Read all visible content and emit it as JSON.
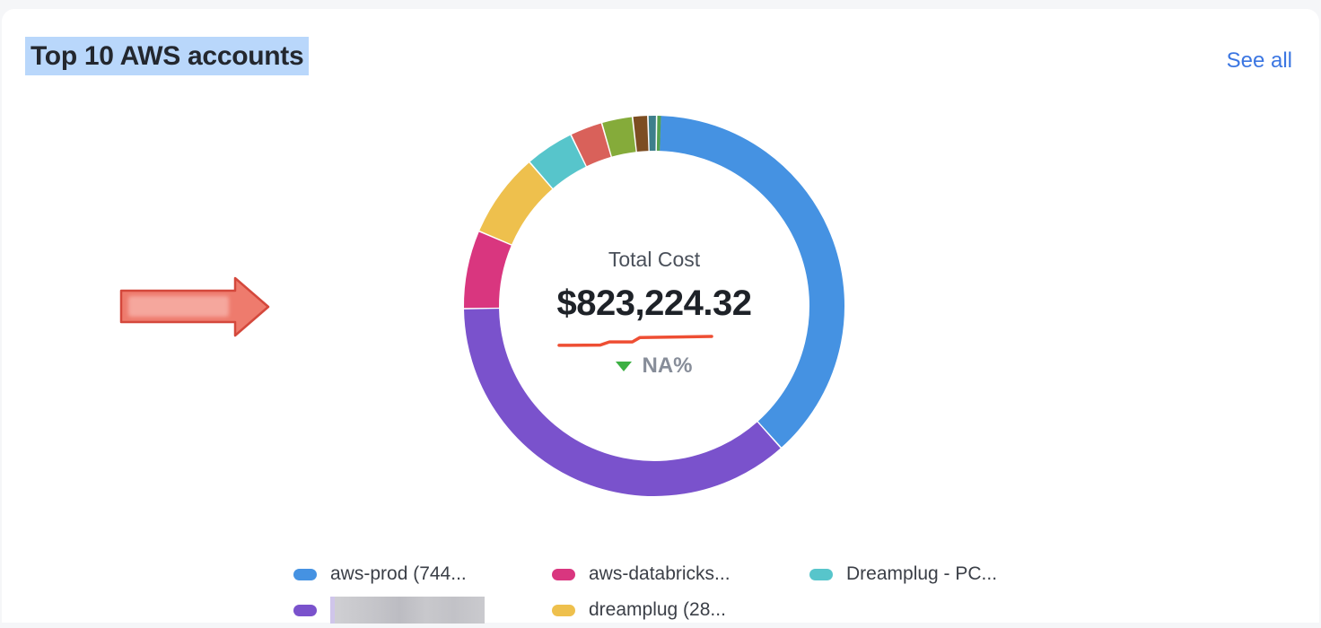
{
  "header": {
    "see_all_label": "See all"
  },
  "colors": {
    "page_bg": "#f5f6f8",
    "card_bg": "#ffffff",
    "selection_highlight": "#b9d7fb",
    "link_blue": "#3b76e2",
    "arrow_fill": "#ee7b6d",
    "arrow_border": "#d4483c",
    "change_triangle_green": "#3cb043",
    "sparkline_red": "#ee4e33"
  },
  "chart_data": {
    "type": "pie",
    "subtype": "donut",
    "title": "Top 10 AWS accounts",
    "legend_position": "bottom",
    "legend_layout": "2-rows-column-major",
    "legend_visible_count": 5,
    "start_angle_deg": 2,
    "center": {
      "label": "Total Cost",
      "value": "$823,224.32",
      "change_pct": "NA%",
      "change_direction": "down",
      "sparkline": {
        "color": "#ee4e33",
        "trend_points_norm": [
          [
            0,
            0.95
          ],
          [
            0.27,
            0.92
          ],
          [
            0.33,
            0.6
          ],
          [
            0.48,
            0.6
          ],
          [
            0.53,
            0.15
          ],
          [
            1,
            0.05
          ]
        ]
      }
    },
    "segments": [
      {
        "name": "aws-prod (744...",
        "color": "#4592e2",
        "approx_pct": 38.2,
        "deg": 136
      },
      {
        "name": "",
        "redacted": true,
        "color": "#7a52cc",
        "approx_pct": 36.7,
        "deg": 130.5
      },
      {
        "name": "aws-databricks...",
        "color": "#d9367f",
        "approx_pct": 6.6,
        "deg": 23.5
      },
      {
        "name": "dreamplug (28...",
        "color": "#eec04d",
        "approx_pct": 7.2,
        "deg": 25.5
      },
      {
        "name": "Dreamplug - PC...",
        "color": "#57c5cb",
        "approx_pct": 4.1,
        "deg": 14.5
      },
      {
        "name": "",
        "color": "#d9615a",
        "approx_pct": 2.7,
        "deg": 9.5
      },
      {
        "name": "",
        "color": "#85ab3a",
        "approx_pct": 2.5,
        "deg": 9.0
      },
      {
        "name": "",
        "color": "#7c4d22",
        "approx_pct": 1.2,
        "deg": 4.2
      },
      {
        "name": "",
        "color": "#3d7f8c",
        "approx_pct": 0.6,
        "deg": 2.2
      },
      {
        "name": "",
        "color": "#55a14f",
        "approx_pct": 0.3,
        "deg": 1.1
      }
    ]
  }
}
